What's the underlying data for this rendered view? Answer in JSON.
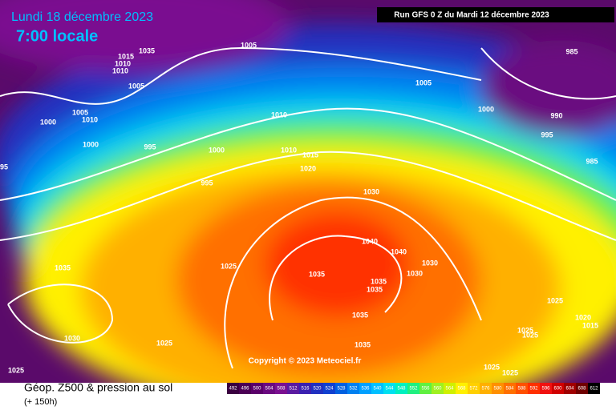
{
  "header": {
    "date": "Lundi 18 décembre 2023",
    "time": "7:00 locale",
    "run": "Run GFS 0 Z du Mardi 12 décembre 2023"
  },
  "copyright": "Copyright © 2023 Meteociel.fr",
  "footer": {
    "title": "Géop. Z500 & pression au sol",
    "lead": "(+ 150h)"
  },
  "isobar_labels": [
    "1005",
    "1035",
    "1015",
    "1010",
    "1010",
    "1005",
    "1005",
    "1010",
    "1000",
    "1000",
    "995",
    "1000",
    "1010",
    "1010",
    "1015",
    "1020",
    "995",
    "1030",
    "1005",
    "1000",
    "990",
    "995",
    "985",
    "985",
    "95",
    "1035",
    "1025",
    "1040",
    "1040",
    "1030",
    "1030",
    "1035",
    "1035",
    "1035",
    "1035",
    "1035",
    "1030",
    "1025",
    "1025",
    "1020",
    "1015",
    "1025",
    "1025",
    "1025",
    "1025",
    "1025"
  ],
  "scale": [
    {
      "value": 492,
      "color": "#3a0040"
    },
    {
      "value": 496,
      "color": "#4b0055"
    },
    {
      "value": 500,
      "color": "#5a006a"
    },
    {
      "value": 504,
      "color": "#6a0a80"
    },
    {
      "value": 508,
      "color": "#7a1090"
    },
    {
      "value": 512,
      "color": "#5a1aa0"
    },
    {
      "value": 516,
      "color": "#3a20b0"
    },
    {
      "value": 520,
      "color": "#2030c0"
    },
    {
      "value": 524,
      "color": "#1040d0"
    },
    {
      "value": 528,
      "color": "#0060e0"
    },
    {
      "value": 532,
      "color": "#0080f0"
    },
    {
      "value": 536,
      "color": "#00a0ff"
    },
    {
      "value": 540,
      "color": "#00c0ff"
    },
    {
      "value": 544,
      "color": "#00e0f0"
    },
    {
      "value": 548,
      "color": "#00f0c0"
    },
    {
      "value": 552,
      "color": "#20f080"
    },
    {
      "value": 556,
      "color": "#60f040"
    },
    {
      "value": 560,
      "color": "#a0f020"
    },
    {
      "value": 564,
      "color": "#d0f000"
    },
    {
      "value": 568,
      "color": "#fff000"
    },
    {
      "value": 572,
      "color": "#ffd000"
    },
    {
      "value": 576,
      "color": "#ffb000"
    },
    {
      "value": 580,
      "color": "#ff9000"
    },
    {
      "value": 584,
      "color": "#ff7000"
    },
    {
      "value": 588,
      "color": "#ff5000"
    },
    {
      "value": 592,
      "color": "#ff3000"
    },
    {
      "value": 596,
      "color": "#f01010"
    },
    {
      "value": 600,
      "color": "#d00000"
    },
    {
      "value": 604,
      "color": "#a00000"
    },
    {
      "value": 608,
      "color": "#700000"
    },
    {
      "value": 612,
      "color": "#000000"
    }
  ]
}
